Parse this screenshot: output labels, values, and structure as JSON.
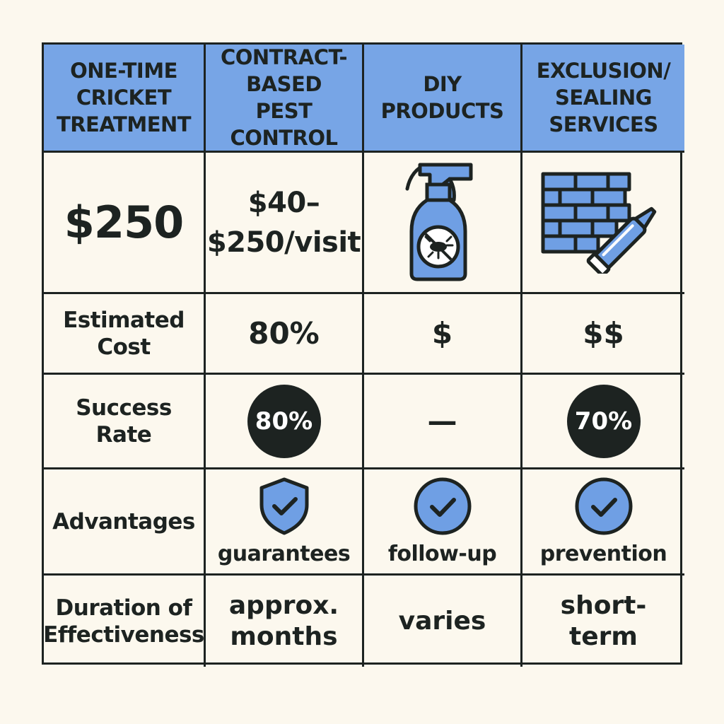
{
  "headers": [
    "ONE-TIME\nCRICKET\nTREATMENT",
    "CONTRACT-\nBASED\nPEST CONTROL",
    "DIY\nPRODUCTS",
    "EXCLUSION/\nSEALING\nSERVICES"
  ],
  "row_price": {
    "one_time": "$250",
    "contract": "$40–\n$250/visit",
    "diy_icon": "spray-bottle-icon",
    "exclusion_icon": "brick-wall-caulk-icon"
  },
  "row_cost": {
    "label": "Estimated\nCost",
    "contract": "80%",
    "diy": "$",
    "exclusion": "$$"
  },
  "row_success": {
    "label": "Success\nRate",
    "contract": "80%",
    "diy": "—",
    "exclusion": "70%"
  },
  "row_advantages": {
    "label": "Advantages",
    "contract": "guarantees",
    "diy": "follow-up",
    "exclusion": "prevention",
    "contract_icon": "shield-check-icon",
    "diy_icon": "check-circle-icon",
    "exclusion_icon": "check-circle-icon"
  },
  "row_duration": {
    "label": "Duration of\nEffectiveness",
    "contract": "approx.\nmonths",
    "diy": "varies",
    "exclusion": "short-\nterm"
  },
  "colors": {
    "header_bg": "#77a5e6",
    "icon_blue": "#6f9fe4",
    "ink": "#1d2321",
    "background": "#fcf8ee"
  }
}
